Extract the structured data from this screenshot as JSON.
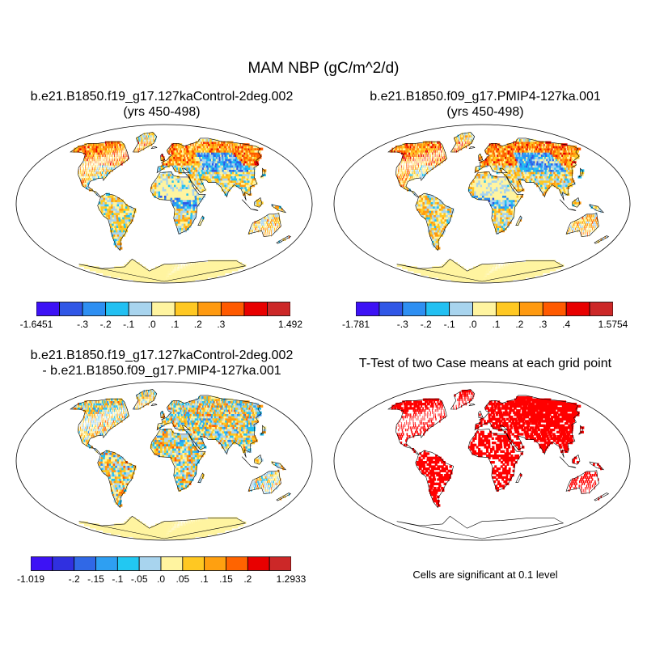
{
  "main_title": "MAM NBP (gC/m^2/d)",
  "panels": [
    {
      "id": "p1",
      "title_line1": "b.e21.B1850.f19_g17.127kaControl-2deg.002",
      "title_line2": "(yrs 450-498)"
    },
    {
      "id": "p2",
      "title_line1": "b.e21.B1850.f09_g17.PMIP4-127ka.001",
      "title_line2": "(yrs 450-498)"
    },
    {
      "id": "p3",
      "title_line1": "b.e21.B1850.f19_g17.127kaControl-2deg.002",
      "title_line2": "- b.e21.B1850.f09_g17.PMIP4-127ka.001"
    },
    {
      "id": "p4",
      "title_line1": "T-Test of two Case means at each grid point",
      "title_line2": ""
    }
  ],
  "colorbars": [
    {
      "colors": [
        "#3d12f5",
        "#3057e6",
        "#2e8ff2",
        "#22c0f2",
        "#a8d4ee",
        "#fff4a0",
        "#ffc822",
        "#ff9a10",
        "#ff5a00",
        "#e80000",
        "#cc2828"
      ],
      "labels": [
        "-1.6451",
        "-.3",
        "-.2",
        "-.1",
        ".0",
        ".1",
        ".2",
        ".3",
        "1.492"
      ]
    },
    {
      "colors": [
        "#3d12f5",
        "#3057e6",
        "#2e8ff2",
        "#22c0f2",
        "#a8d4ee",
        "#fff4a0",
        "#ffc822",
        "#ff9a10",
        "#ff5a00",
        "#e80000",
        "#cc2828"
      ],
      "labels": [
        "-1.781",
        "-.3",
        "-.2",
        "-.1",
        ".0",
        ".1",
        ".2",
        ".3",
        ".4",
        "1.5754"
      ]
    },
    {
      "colors": [
        "#3d12f5",
        "#3030e0",
        "#3068e6",
        "#2e9ff2",
        "#22c8f2",
        "#a8d4ee",
        "#fff4a0",
        "#ffc822",
        "#ffa010",
        "#ff6400",
        "#e80000",
        "#cc2828"
      ],
      "labels": [
        "-1.019",
        "-.2",
        "-.15",
        "-.1",
        "-.05",
        ".0",
        ".05",
        ".1",
        ".15",
        ".2",
        "1.2933"
      ]
    }
  ],
  "footnote": "Cells are significant at 0.1 level",
  "land_color": "#fff4a0",
  "signif_color": "#ff0000"
}
